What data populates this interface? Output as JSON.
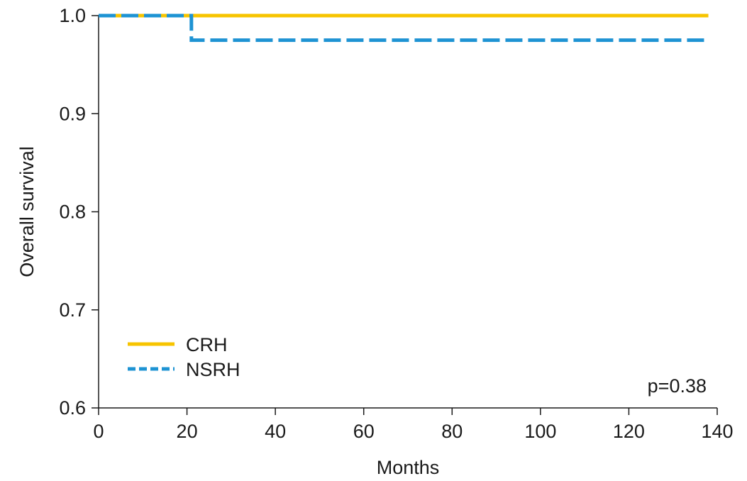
{
  "chart_data": {
    "type": "line",
    "title": "",
    "xlabel": "Months",
    "ylabel": "Overall survival",
    "xlim": [
      0,
      140
    ],
    "ylim": [
      0.6,
      1.0
    ],
    "xticks": [
      0,
      20,
      40,
      60,
      80,
      100,
      120,
      140
    ],
    "yticks": [
      0.6,
      0.7,
      0.8,
      0.9,
      1.0
    ],
    "xtick_labels": [
      "0",
      "20",
      "40",
      "60",
      "80",
      "100",
      "120",
      "140"
    ],
    "ytick_labels": [
      "0.6",
      "0.7",
      "0.8",
      "0.9",
      "1.0"
    ],
    "grid": false,
    "legend_position": "bottom-left",
    "step": true,
    "series": [
      {
        "name": "CRH",
        "color": "#F7C400",
        "dash": "solid",
        "x": [
          0,
          138
        ],
        "y": [
          1.0,
          1.0
        ]
      },
      {
        "name": "NSRH",
        "color": "#1E93D3",
        "dash": "dashed",
        "x": [
          0,
          21,
          138
        ],
        "y": [
          1.0,
          0.975,
          0.975
        ]
      }
    ],
    "annotations": [
      {
        "text": "p=0.38",
        "x": 138,
        "y": 0.623
      }
    ]
  }
}
